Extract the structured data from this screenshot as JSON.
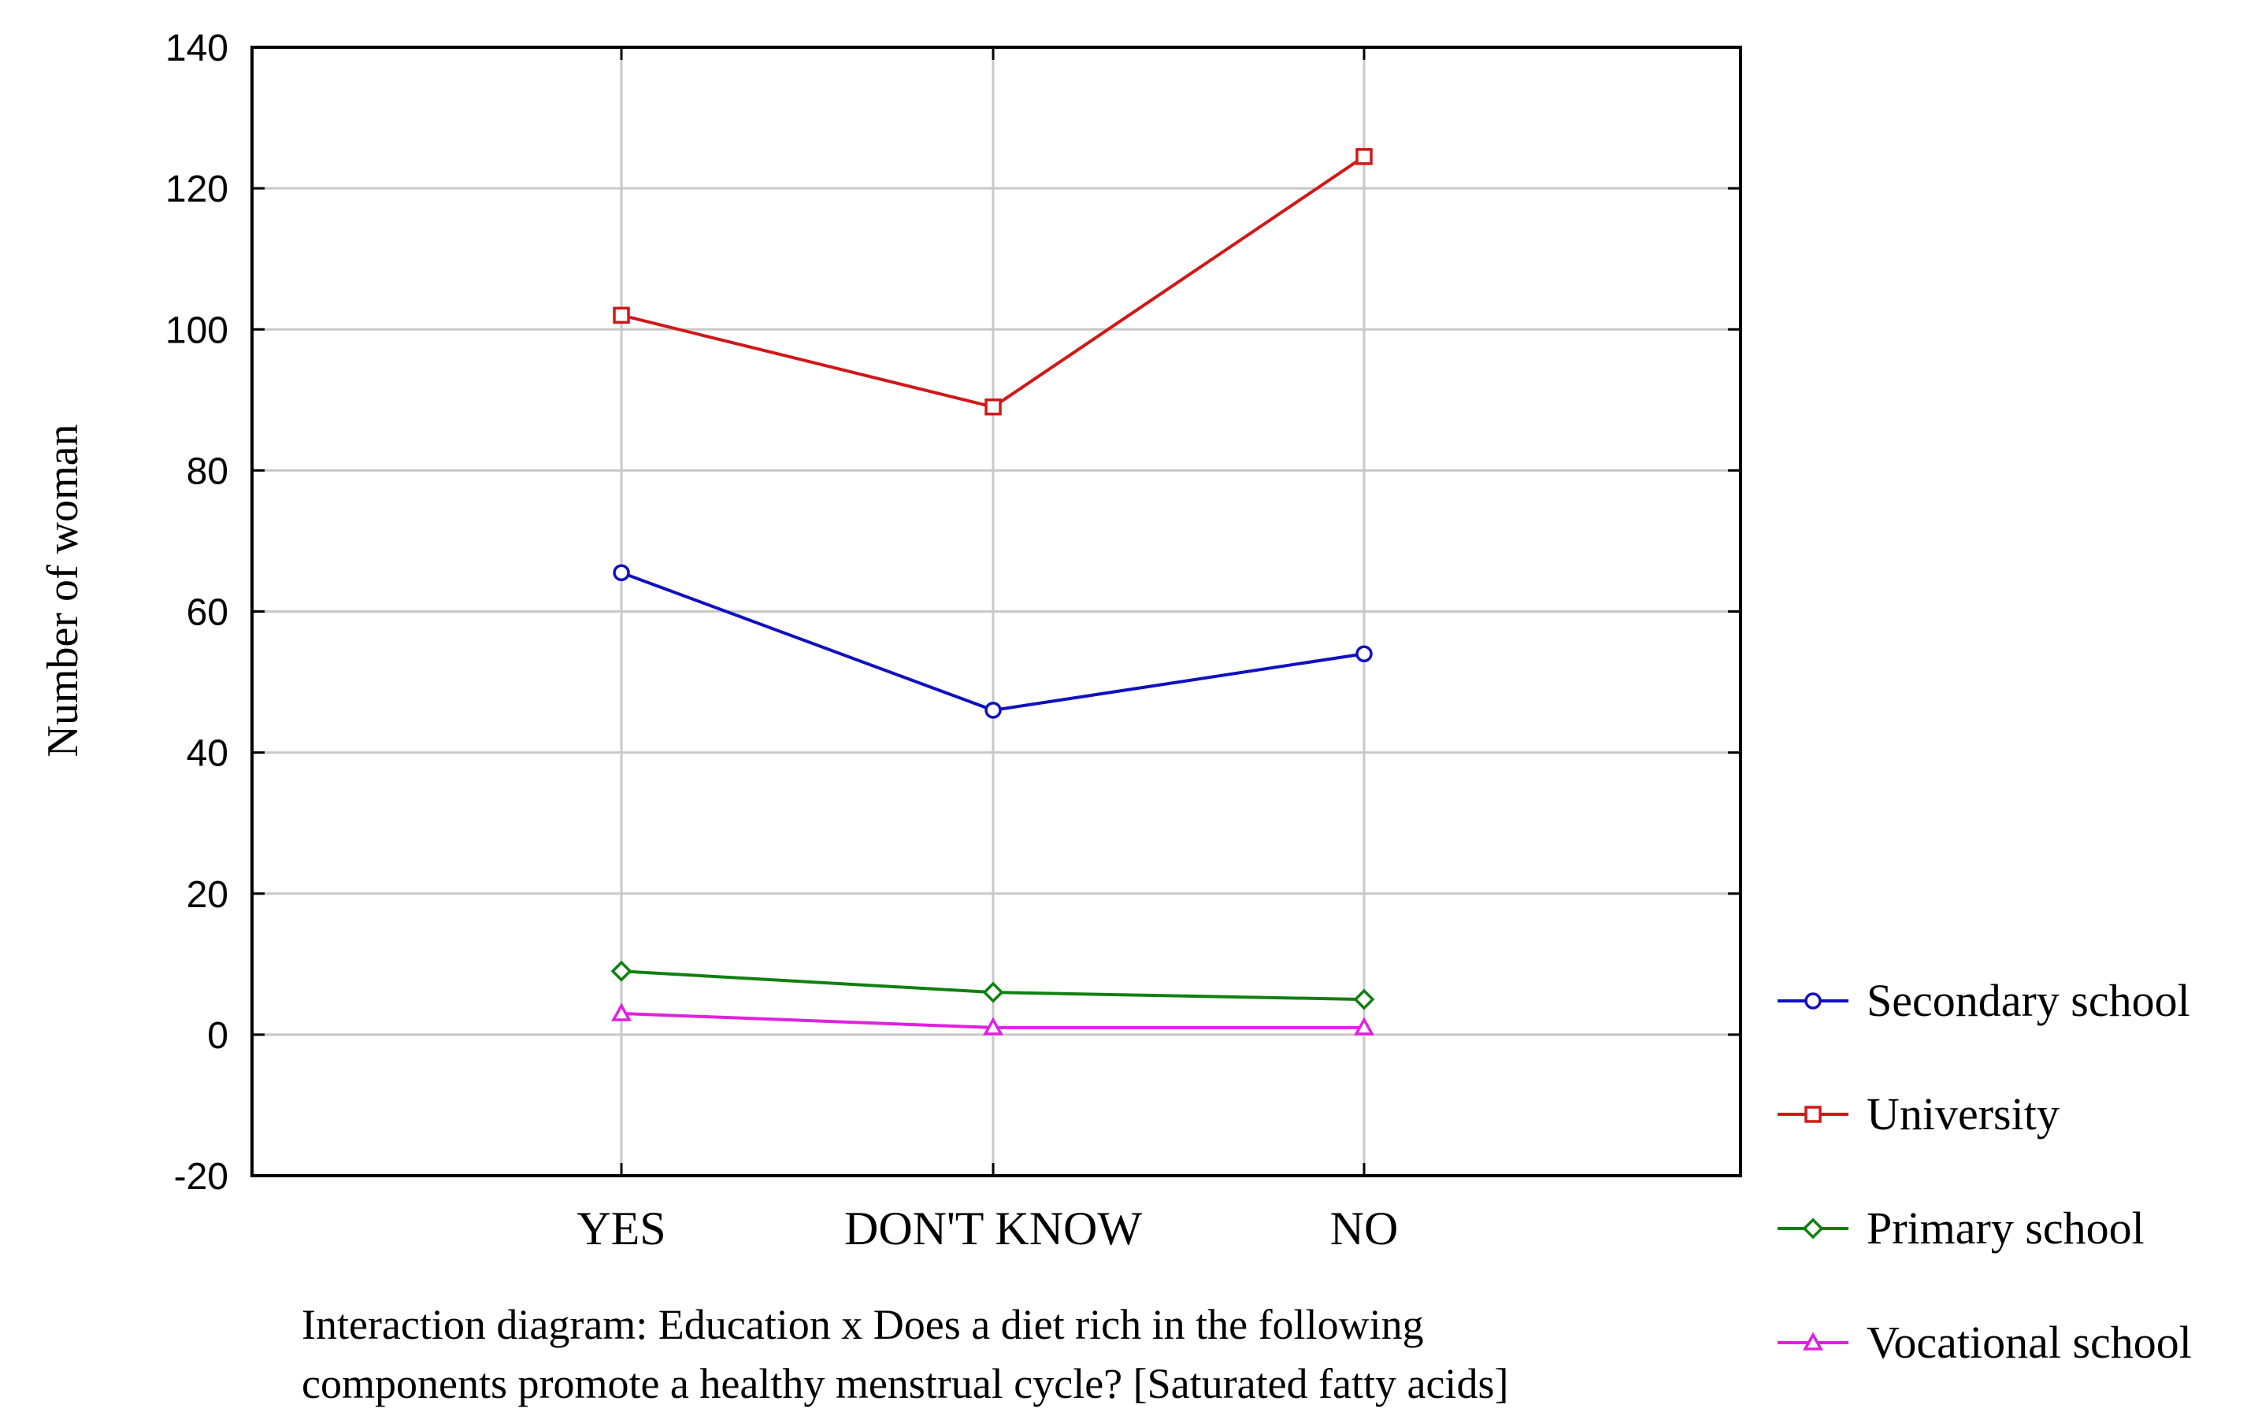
{
  "chart_data": {
    "type": "line",
    "categories": [
      "YES",
      "DON'T KNOW",
      "NO"
    ],
    "ylabel": "Number of woman",
    "xlabel": "",
    "ylim": [
      -20,
      140
    ],
    "yticks": [
      -20,
      0,
      20,
      40,
      60,
      80,
      100,
      120,
      140
    ],
    "ytick_labels": [
      "-20",
      "0",
      "20",
      "40",
      "60",
      "80",
      "100",
      "120",
      "140"
    ],
    "grid": true,
    "legend_position": "right",
    "caption": [
      "Interaction diagram: Education x Does a diet rich in the following",
      "components promote a healthy menstrual cycle? [Saturated fatty acids]"
    ],
    "series": [
      {
        "name": "Secondary school",
        "values": [
          65.5,
          46,
          54
        ],
        "color": "#1010c0",
        "marker": "circle"
      },
      {
        "name": "University",
        "values": [
          102,
          89,
          124.5
        ],
        "color": "#d01818",
        "marker": "square"
      },
      {
        "name": "Primary school",
        "values": [
          9,
          6,
          5
        ],
        "color": "#108010",
        "marker": "diamond"
      },
      {
        "name": "Vocational school",
        "values": [
          3,
          1,
          1
        ],
        "color": "#e020e0",
        "marker": "triangle"
      }
    ]
  }
}
